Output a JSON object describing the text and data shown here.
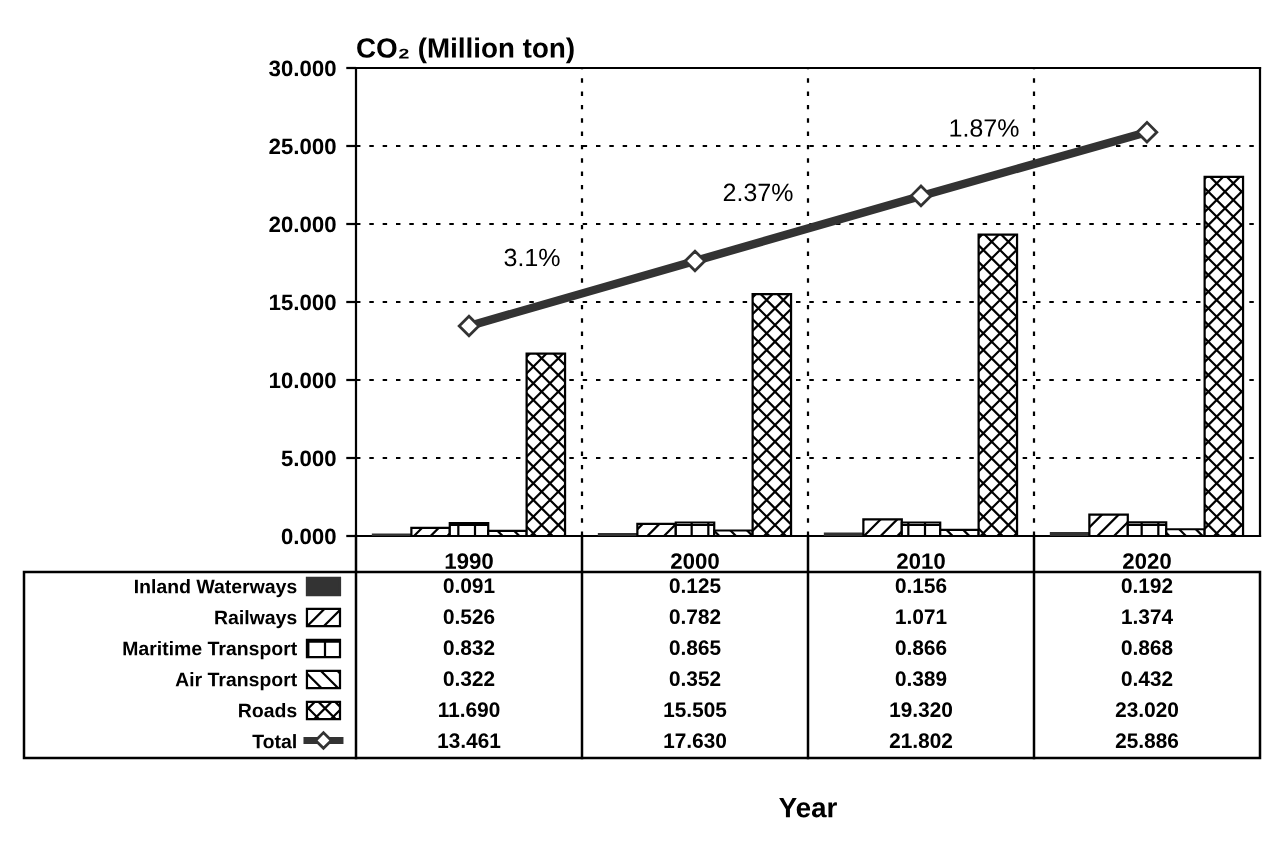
{
  "chart_data": {
    "type": "bar",
    "ylabel": "CO₂ (Million ton)",
    "categories": [
      "1990",
      "2000",
      "2010",
      "2020"
    ],
    "ylim": [
      0,
      30
    ],
    "yticks": [
      {
        "value": 0,
        "label": "0.000"
      },
      {
        "value": 5,
        "label": "5.000"
      },
      {
        "value": 10,
        "label": "10.000"
      },
      {
        "value": 15,
        "label": "15.000"
      },
      {
        "value": 20,
        "label": "20.000"
      },
      {
        "value": 25,
        "label": "25.000"
      },
      {
        "value": 30,
        "label": "30.000"
      }
    ],
    "grid": true,
    "legend": "bottom",
    "marker": "diamond",
    "series": [
      {
        "name": "Inland Waterways",
        "color": "#333333",
        "values": [
          0.091,
          0.125,
          0.156,
          0.192
        ],
        "value_labels": [
          "0.091",
          "0.125",
          "0.156",
          "0.192"
        ]
      },
      {
        "name": "Railways",
        "color": "#000000",
        "values": [
          0.526,
          0.782,
          1.071,
          1.374
        ],
        "value_labels": [
          "0.526",
          "0.782",
          "1.071",
          "1.374"
        ]
      },
      {
        "name": "Maritime Transport",
        "color": "#000000",
        "values": [
          0.832,
          0.865,
          0.866,
          0.868
        ],
        "value_labels": [
          "0.832",
          "0.865",
          "0.866",
          "0.868"
        ]
      },
      {
        "name": "Air Transport",
        "color": "#000000",
        "values": [
          0.322,
          0.352,
          0.389,
          0.432
        ],
        "value_labels": [
          "0.322",
          "0.352",
          "0.389",
          "0.432"
        ]
      },
      {
        "name": "Roads",
        "color": "#000000",
        "values": [
          11.69,
          15.505,
          19.32,
          23.02
        ],
        "value_labels": [
          "11.690",
          "15.505",
          "19.320",
          "23.020"
        ]
      },
      {
        "name": "Total",
        "type": "line",
        "color": "#333333",
        "values": [
          13.461,
          17.63,
          21.802,
          25.886
        ],
        "value_labels": [
          "13.461",
          "17.630",
          "21.802",
          "25.886"
        ]
      }
    ],
    "annotations": [
      "3.1%",
      "2.37%",
      "1.87%",
      "Year"
    ]
  }
}
